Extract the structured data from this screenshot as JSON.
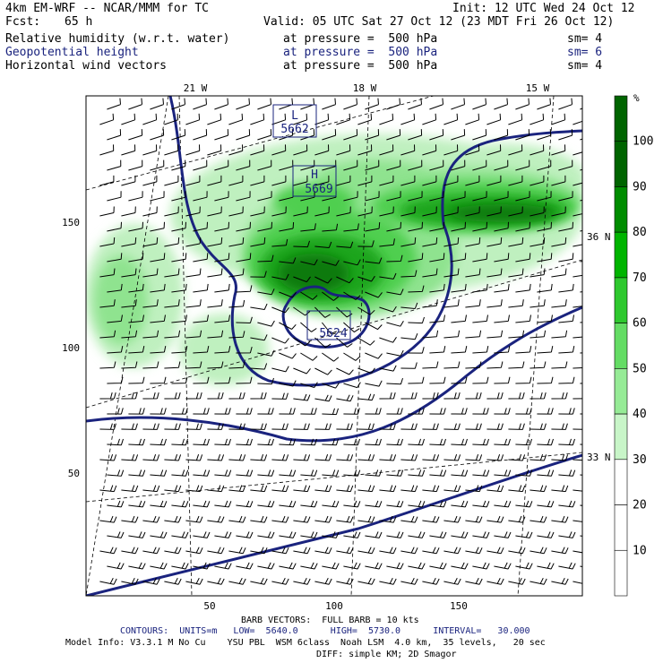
{
  "header": {
    "model": "4km EM-WRF -- NCAR/MMM for TC",
    "init": "Init: 12 UTC Wed 24 Oct 12",
    "fcst_label": "Fcst:",
    "fcst_value": "65 h",
    "valid": "Valid: 05 UTC Sat 27 Oct 12 (23 MDT Fri 26 Oct 12)"
  },
  "fields": [
    {
      "name": "Relative humidity (w.r.t. water)",
      "level": "at pressure =  500 hPa",
      "sm": "sm= 4",
      "color": "#000000"
    },
    {
      "name": "Geopotential height",
      "level": "at pressure =  500 hPa",
      "sm": "sm= 6",
      "color": "#1a237e"
    },
    {
      "name": "Horizontal wind vectors",
      "level": "at pressure =  500 hPa",
      "sm": "sm= 4",
      "color": "#000000"
    }
  ],
  "map": {
    "lon_labels": [
      "21 W",
      "18 W",
      "15 W"
    ],
    "lat_labels": [
      "36 N",
      "33 N"
    ],
    "x_ticks": [
      "50",
      "100",
      "150"
    ],
    "y_ticks": [
      "150",
      "100",
      "50"
    ],
    "highs": [
      {
        "symbol": "L",
        "value": "5662"
      },
      {
        "symbol": "H",
        "value": "5669"
      },
      {
        "symbol": "L",
        "value": "5624"
      }
    ]
  },
  "colorbar": {
    "unit": "%",
    "labels": [
      "100",
      "90",
      "80",
      "70",
      "60",
      "50",
      "40",
      "30",
      "20",
      "10"
    ],
    "colors": [
      "#006400",
      "#008c00",
      "#00b400",
      "#2ec82e",
      "#64dc64",
      "#96eb96",
      "#c8f5c8",
      "#ffffff",
      "#ffffff",
      "#ffffff"
    ]
  },
  "footer": {
    "barb": "BARB VECTORS:  FULL BARB = 10 kts",
    "contours": "CONTOURS:  UNITS=m   LOW=  5640.0      HIGH=  5730.0      INTERVAL=   30.000",
    "model_info": "Model Info: V3.3.1 M No Cu    YSU PBL  WSM 6class  Noah LSM  4.0 km,  35 levels,   20 sec",
    "diff": "DIFF: simple KM; 2D Smagor"
  }
}
